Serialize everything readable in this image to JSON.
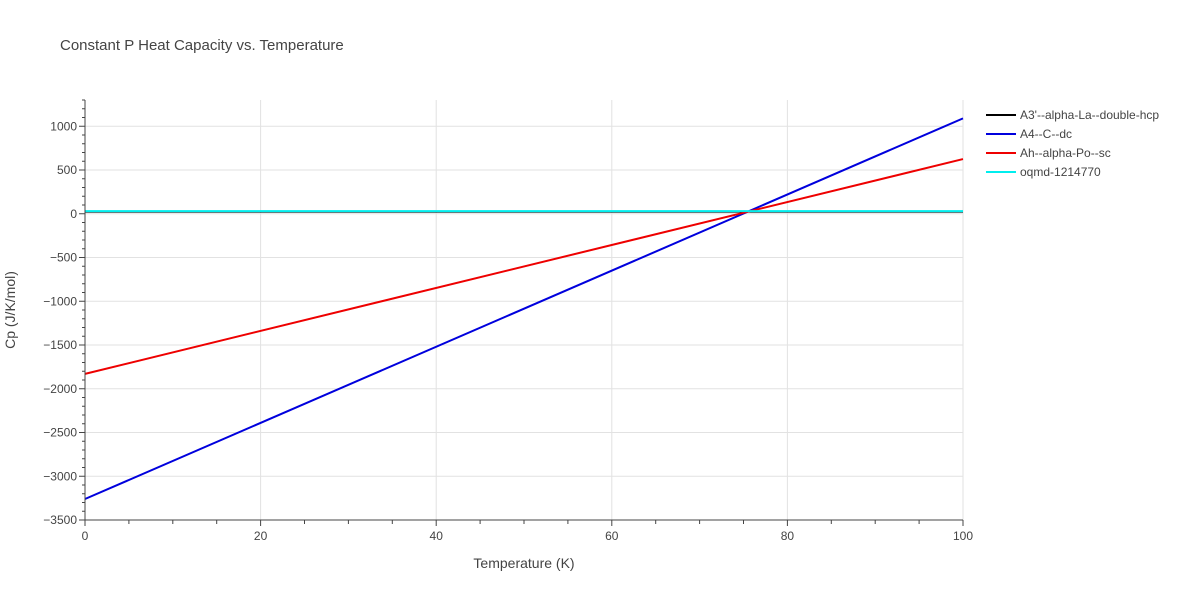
{
  "chart_data": {
    "type": "line",
    "title": "Constant P Heat Capacity vs. Temperature",
    "xlabel": "Temperature (K)",
    "ylabel": "Cp (J/K/mol)",
    "xlim": [
      0,
      100
    ],
    "ylim": [
      -3500,
      1300
    ],
    "x_ticks": [
      0,
      20,
      40,
      60,
      80,
      100
    ],
    "x_tick_labels": [
      "0",
      "20",
      "40",
      "60",
      "80",
      "100"
    ],
    "y_ticks": [
      -3500,
      -3000,
      -2500,
      -2000,
      -1500,
      -1000,
      -500,
      0,
      500,
      1000
    ],
    "y_tick_labels": [
      "−3500",
      "−3000",
      "−2500",
      "−2000",
      "−1500",
      "−1000",
      "−500",
      "0",
      "500",
      "1000"
    ],
    "grid": true,
    "legend_position": "top-right outside",
    "series": [
      {
        "name": "A3'--alpha-La--double-hcp",
        "color": "#000000",
        "x": [
          0,
          100
        ],
        "y": [
          25,
          25
        ]
      },
      {
        "name": "A4--C--dc",
        "color": "#0000dd",
        "x": [
          0,
          100
        ],
        "y": [
          -3260,
          1090
        ]
      },
      {
        "name": "Ah--alpha-Po--sc",
        "color": "#ee0000",
        "x": [
          0,
          100
        ],
        "y": [
          -1830,
          625
        ]
      },
      {
        "name": "oqmd-1214770",
        "color": "#00eeee",
        "x": [
          0,
          100
        ],
        "y": [
          30,
          30
        ]
      }
    ]
  }
}
